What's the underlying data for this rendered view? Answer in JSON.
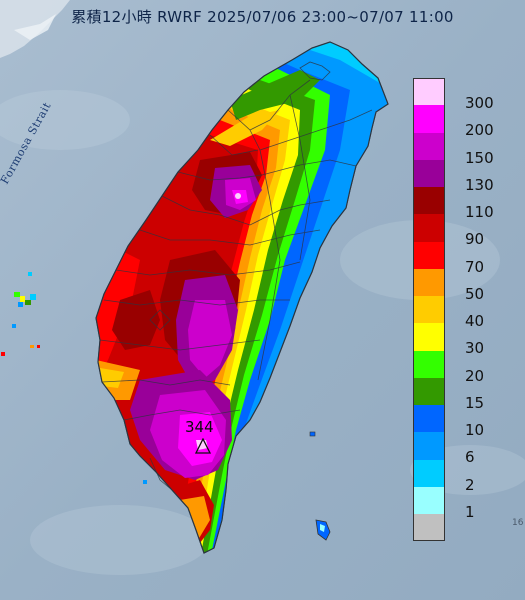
{
  "title": "累積12小時 RWRF 2025/07/06 23:00~07/07 11:00",
  "strait_label": "Formosa Strait",
  "peak_value": "344",
  "corner_text": "16",
  "legend": [
    {
      "color": "#ffccff",
      "label": "300"
    },
    {
      "color": "#ff00ff",
      "label": "200"
    },
    {
      "color": "#cc00cc",
      "label": "150"
    },
    {
      "color": "#990099",
      "label": "130"
    },
    {
      "color": "#990000",
      "label": "110"
    },
    {
      "color": "#cc0000",
      "label": "90"
    },
    {
      "color": "#ff0000",
      "label": "70"
    },
    {
      "color": "#ff9900",
      "label": "50"
    },
    {
      "color": "#ffcc00",
      "label": "40"
    },
    {
      "color": "#ffff00",
      "label": "30"
    },
    {
      "color": "#33ff00",
      "label": "20"
    },
    {
      "color": "#339900",
      "label": "15"
    },
    {
      "color": "#0066ff",
      "label": "10"
    },
    {
      "color": "#0099ff",
      "label": "6"
    },
    {
      "color": "#00ccff",
      "label": "2"
    },
    {
      "color": "#99ffff",
      "label": "1"
    },
    {
      "color": "#c0c0c0",
      "label": ""
    }
  ]
}
